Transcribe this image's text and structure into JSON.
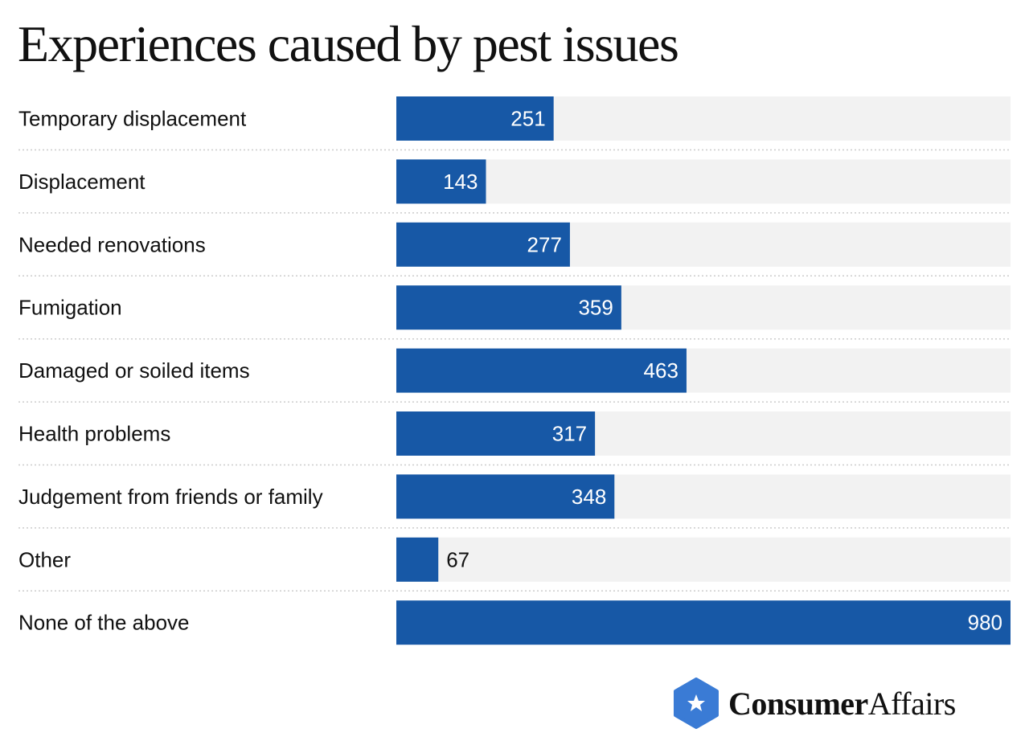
{
  "chart_data": {
    "type": "bar",
    "orientation": "horizontal",
    "title": "Experiences caused by pest issues",
    "categories": [
      "Temporary displacement",
      "Displacement",
      "Needed renovations",
      "Fumigation",
      "Damaged or soiled items",
      "Health problems",
      "Judgement from friends or family",
      "Other",
      "None of the above"
    ],
    "values": [
      251,
      143,
      277,
      359,
      463,
      317,
      348,
      67,
      980
    ],
    "xlim": [
      0,
      980
    ],
    "grid": false,
    "data_labels": true,
    "colors": {
      "bar": "#1758a6",
      "track": "#f2f2f2",
      "separator": "#cccccc"
    }
  },
  "branding": {
    "logo_bold": "Consumer",
    "logo_light": "Affairs",
    "logo_color": "#3a7bd5"
  }
}
